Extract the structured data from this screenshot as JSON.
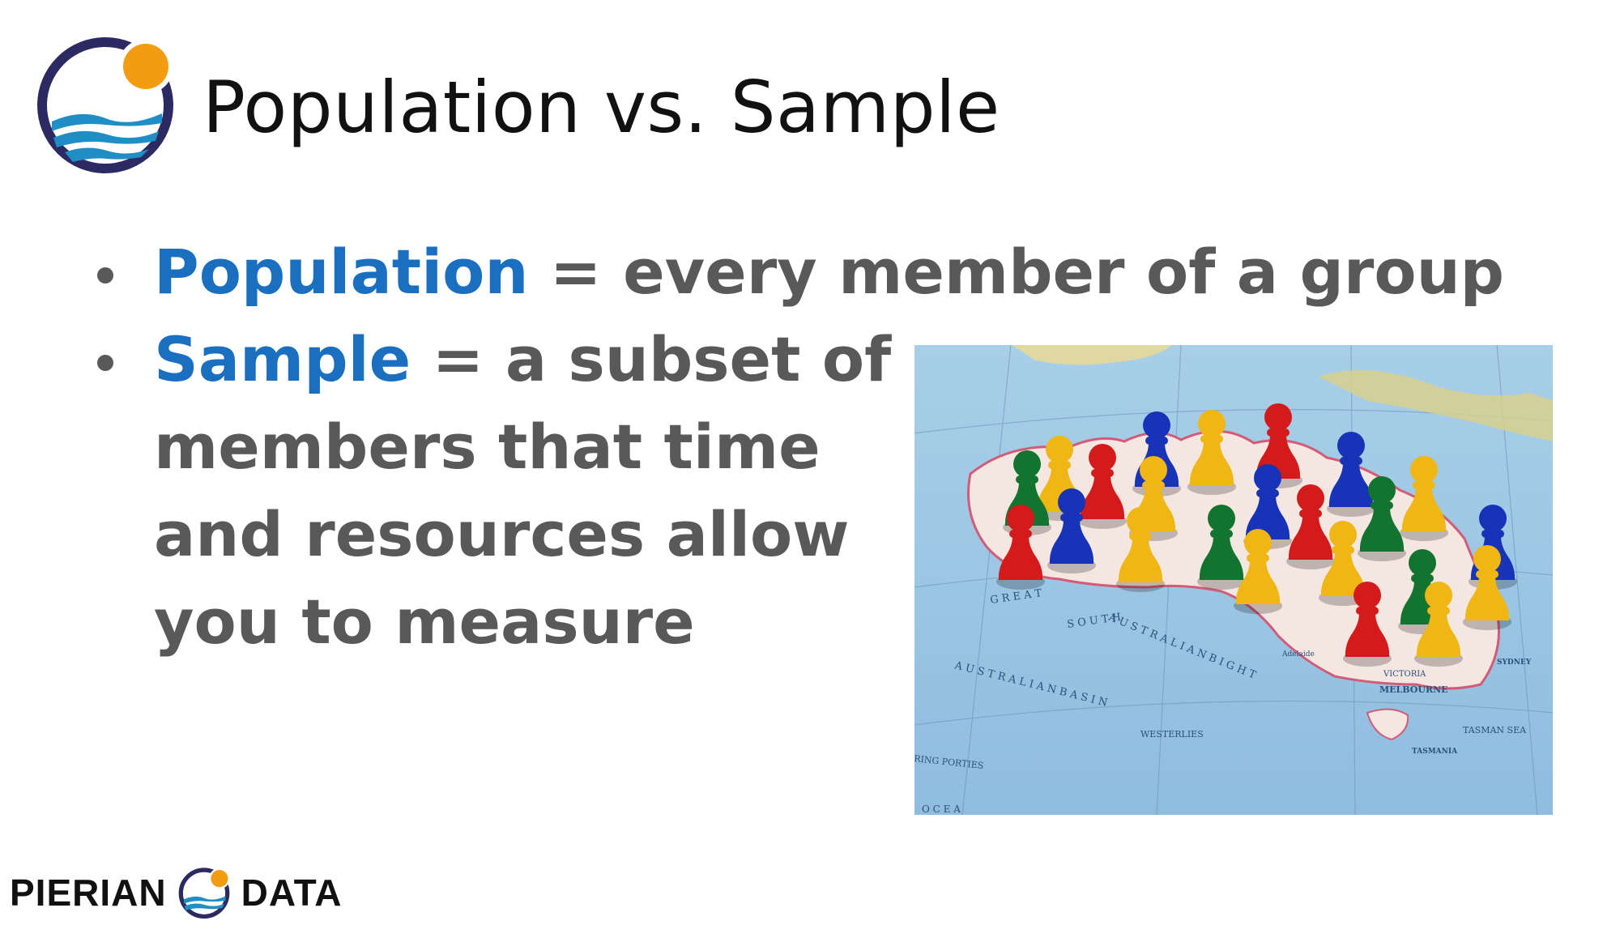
{
  "slide": {
    "title": "Population vs. Sample",
    "bullets": [
      {
        "term": "Population",
        "rest": " = every member of a group"
      },
      {
        "term": "Sample",
        "rest": " = a subset of",
        "continuation": [
          "members that time",
          "and resources allow",
          "you to measure"
        ]
      }
    ]
  },
  "photo": {
    "map_labels": {
      "great": "G R E A T",
      "south": "S O U T H",
      "australian_bight": "A U S T R A L I A N   B I G H T",
      "basin": "A U S T R A L I A N   B A S I N",
      "westerlies": "WESTERLIES",
      "melbourne": "MELBOURNE",
      "sydney": "SYDNEY",
      "tasmania": "TASMANIA",
      "tasman_sea": "TASMAN SEA",
      "adelaide": "Adelaide",
      "victoria": "VICTORIA",
      "ring_porties": "RING PORTIES",
      "ocean": "O C E A"
    },
    "pawn_colors": {
      "red": "#d41a1a",
      "blue": "#1733b8",
      "yellow": "#f0b614",
      "green": "#12742e"
    }
  },
  "footer": {
    "brand_left": "PIERIAN",
    "brand_right": "DATA"
  },
  "colors": {
    "accent": "#1a6fc0",
    "body_text": "#595959",
    "logo_ring": "#2b2a63",
    "logo_sun": "#f39c12",
    "logo_wave": "#1f8ec4"
  }
}
